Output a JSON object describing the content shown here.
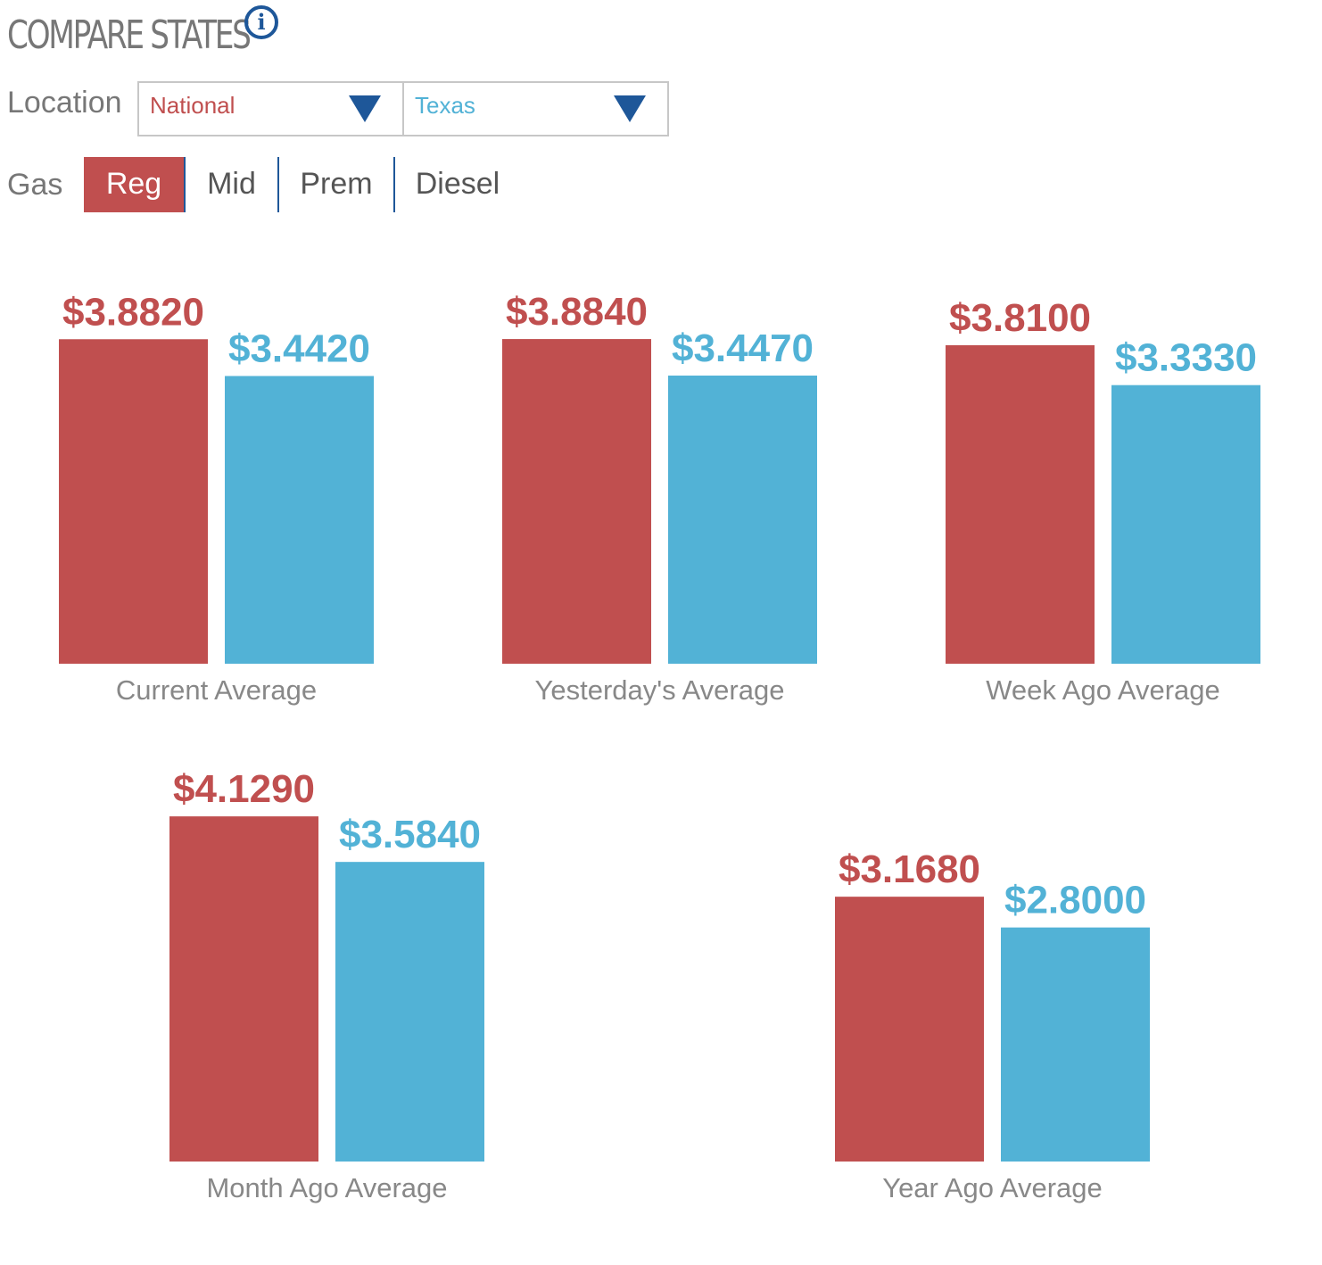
{
  "header": {
    "title": "COMPARE STATES",
    "info_icon": "info-icon"
  },
  "location": {
    "label": "Location",
    "selects": [
      {
        "value": "National",
        "color": "#c04f4f"
      },
      {
        "value": "Texas",
        "color": "#52b2d6"
      }
    ]
  },
  "gas": {
    "label": "Gas",
    "tabs": [
      {
        "label": "Reg",
        "active": true
      },
      {
        "label": "Mid",
        "active": false
      },
      {
        "label": "Prem",
        "active": false
      },
      {
        "label": "Diesel",
        "active": false
      }
    ]
  },
  "colors": {
    "national": "#c04f4f",
    "texas": "#52b2d6",
    "label": "#888888",
    "accent": "#1e5799"
  },
  "chart_data": {
    "type": "bar",
    "series": [
      {
        "name": "National",
        "color": "#c04f4f"
      },
      {
        "name": "Texas",
        "color": "#52b2d6"
      }
    ],
    "groups": [
      {
        "label": "Current Average",
        "national": 3.882,
        "texas": 3.442,
        "national_label": "$3.8820",
        "texas_label": "$3.4420"
      },
      {
        "label": "Yesterday's Average",
        "national": 3.884,
        "texas": 3.447,
        "national_label": "$3.8840",
        "texas_label": "$3.4470"
      },
      {
        "label": "Week Ago Average",
        "national": 3.81,
        "texas": 3.333,
        "national_label": "$3.8100",
        "texas_label": "$3.3330"
      },
      {
        "label": "Month Ago Average",
        "national": 4.129,
        "texas": 3.584,
        "national_label": "$4.1290",
        "texas_label": "$3.5840"
      },
      {
        "label": "Year Ago Average",
        "national": 3.168,
        "texas": 2.8,
        "national_label": "$3.1680",
        "texas_label": "$2.8000"
      }
    ]
  }
}
